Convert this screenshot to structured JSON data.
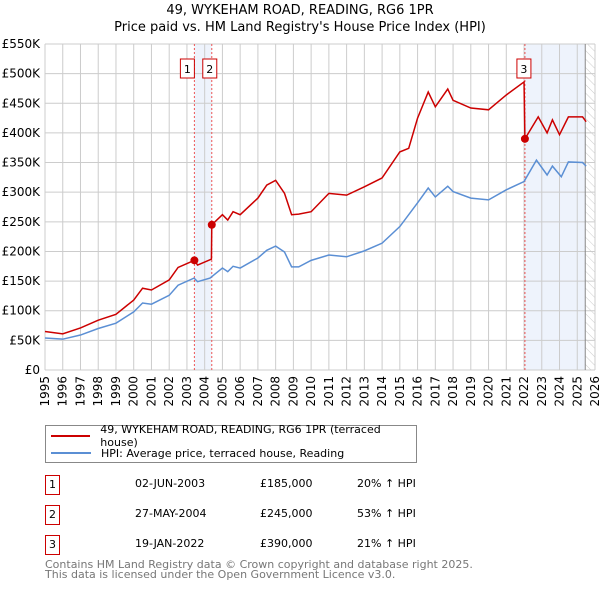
{
  "chart_data": {
    "type": "line",
    "title": "49, WYKEHAM ROAD, READING, RG6 1PR",
    "subtitle": "Price paid vs. HM Land Registry's House Price Index (HPI)",
    "xlim": [
      1995,
      2026
    ],
    "ylim": [
      0,
      550000
    ],
    "x_ticks": [
      "1995",
      "1996",
      "1997",
      "1998",
      "1999",
      "2000",
      "2001",
      "2002",
      "2003",
      "2004",
      "2005",
      "2006",
      "2007",
      "2008",
      "2009",
      "2010",
      "2011",
      "2012",
      "2013",
      "2014",
      "2015",
      "2016",
      "2017",
      "2018",
      "2019",
      "2020",
      "2021",
      "2022",
      "2023",
      "2024",
      "2025",
      "2026"
    ],
    "y_ticks": [
      {
        "v": 0,
        "label": "£0"
      },
      {
        "v": 50000,
        "label": "£50K"
      },
      {
        "v": 100000,
        "label": "£100K"
      },
      {
        "v": 150000,
        "label": "£150K"
      },
      {
        "v": 200000,
        "label": "£200K"
      },
      {
        "v": 250000,
        "label": "£250K"
      },
      {
        "v": 300000,
        "label": "£300K"
      },
      {
        "v": 350000,
        "label": "£350K"
      },
      {
        "v": 400000,
        "label": "£400K"
      },
      {
        "v": 450000,
        "label": "£450K"
      },
      {
        "v": 500000,
        "label": "£500K"
      },
      {
        "v": 550000,
        "label": "£550K"
      }
    ],
    "grid": true,
    "series": [
      {
        "name": "49, WYKEHAM ROAD, READING, RG6 1PR (terraced house)",
        "color": "#cc0000",
        "points": [
          [
            1995,
            65000
          ],
          [
            1996,
            61000
          ],
          [
            1997,
            71000
          ],
          [
            1998,
            84000
          ],
          [
            1999,
            94000
          ],
          [
            2000,
            118000
          ],
          [
            2000.5,
            138000
          ],
          [
            2001,
            135000
          ],
          [
            2002,
            152000
          ],
          [
            2002.5,
            173000
          ],
          [
            2003.42,
            185000
          ],
          [
            2003.6,
            177000
          ],
          [
            2004.38,
            187000
          ],
          [
            2004.4,
            245000
          ],
          [
            2005,
            262000
          ],
          [
            2005.3,
            253000
          ],
          [
            2005.6,
            267000
          ],
          [
            2006,
            262000
          ],
          [
            2007,
            290000
          ],
          [
            2007.5,
            312000
          ],
          [
            2008,
            320000
          ],
          [
            2008.5,
            298000
          ],
          [
            2008.9,
            262000
          ],
          [
            2009.3,
            263000
          ],
          [
            2010,
            267000
          ],
          [
            2011,
            298000
          ],
          [
            2012,
            295000
          ],
          [
            2013,
            309000
          ],
          [
            2014,
            324000
          ],
          [
            2015,
            368000
          ],
          [
            2015.5,
            374000
          ],
          [
            2016,
            425000
          ],
          [
            2016.6,
            469000
          ],
          [
            2017,
            444000
          ],
          [
            2017.7,
            474000
          ],
          [
            2018,
            455000
          ],
          [
            2019,
            442000
          ],
          [
            2020,
            439000
          ],
          [
            2021,
            464000
          ],
          [
            2022,
            486000
          ],
          [
            2022.05,
            390000
          ],
          [
            2022.8,
            427000
          ],
          [
            2023.3,
            400000
          ],
          [
            2023.6,
            422000
          ],
          [
            2024,
            397000
          ],
          [
            2024.5,
            427000
          ],
          [
            2025.3,
            427000
          ],
          [
            2025.5,
            419000
          ]
        ]
      },
      {
        "name": "HPI: Average price, terraced house, Reading",
        "color": "#5b8fd4",
        "points": [
          [
            1995,
            54000
          ],
          [
            1996,
            52000
          ],
          [
            1997,
            59000
          ],
          [
            1998,
            70000
          ],
          [
            1999,
            79000
          ],
          [
            2000,
            98000
          ],
          [
            2000.5,
            113000
          ],
          [
            2001,
            111000
          ],
          [
            2002,
            126000
          ],
          [
            2002.5,
            143000
          ],
          [
            2003.4,
            155000
          ],
          [
            2003.6,
            149000
          ],
          [
            2004.3,
            155000
          ],
          [
            2005,
            172000
          ],
          [
            2005.3,
            166000
          ],
          [
            2005.6,
            175000
          ],
          [
            2006,
            172000
          ],
          [
            2007,
            189000
          ],
          [
            2007.5,
            202000
          ],
          [
            2008,
            209000
          ],
          [
            2008.5,
            199000
          ],
          [
            2008.9,
            174000
          ],
          [
            2009.3,
            174000
          ],
          [
            2010,
            185000
          ],
          [
            2011,
            194000
          ],
          [
            2012,
            191000
          ],
          [
            2013,
            201000
          ],
          [
            2014,
            214000
          ],
          [
            2015,
            242000
          ],
          [
            2016,
            282000
          ],
          [
            2016.6,
            307000
          ],
          [
            2017,
            292000
          ],
          [
            2017.7,
            310000
          ],
          [
            2018,
            301000
          ],
          [
            2019,
            290000
          ],
          [
            2020,
            287000
          ],
          [
            2021,
            304000
          ],
          [
            2022,
            318000
          ],
          [
            2022.7,
            354000
          ],
          [
            2023.3,
            329000
          ],
          [
            2023.6,
            344000
          ],
          [
            2024.1,
            326000
          ],
          [
            2024.5,
            351000
          ],
          [
            2025.3,
            350000
          ],
          [
            2025.5,
            344000
          ]
        ]
      }
    ],
    "sales": [
      {
        "num": "1",
        "x": 2003.42,
        "price": 185000,
        "date": "02-JUN-2003",
        "price_label": "£185,000",
        "hpi": "20% ↑ HPI"
      },
      {
        "num": "2",
        "x": 2004.4,
        "price": 245000,
        "date": "27-MAY-2004",
        "price_label": "£245,000",
        "hpi": "53% ↑ HPI"
      },
      {
        "num": "3",
        "x": 2022.05,
        "price": 390000,
        "date": "19-JAN-2022",
        "price_label": "£390,000",
        "hpi": "21% ↑ HPI"
      }
    ],
    "shaded": [
      [
        2003.42,
        2004.4
      ],
      [
        2022.05,
        2025.45
      ]
    ],
    "forecast_from": 2025.45
  },
  "footer": {
    "line1": "Contains HM Land Registry data © Crown copyright and database right 2025.",
    "line2": "This data is licensed under the Open Government Licence v3.0."
  }
}
